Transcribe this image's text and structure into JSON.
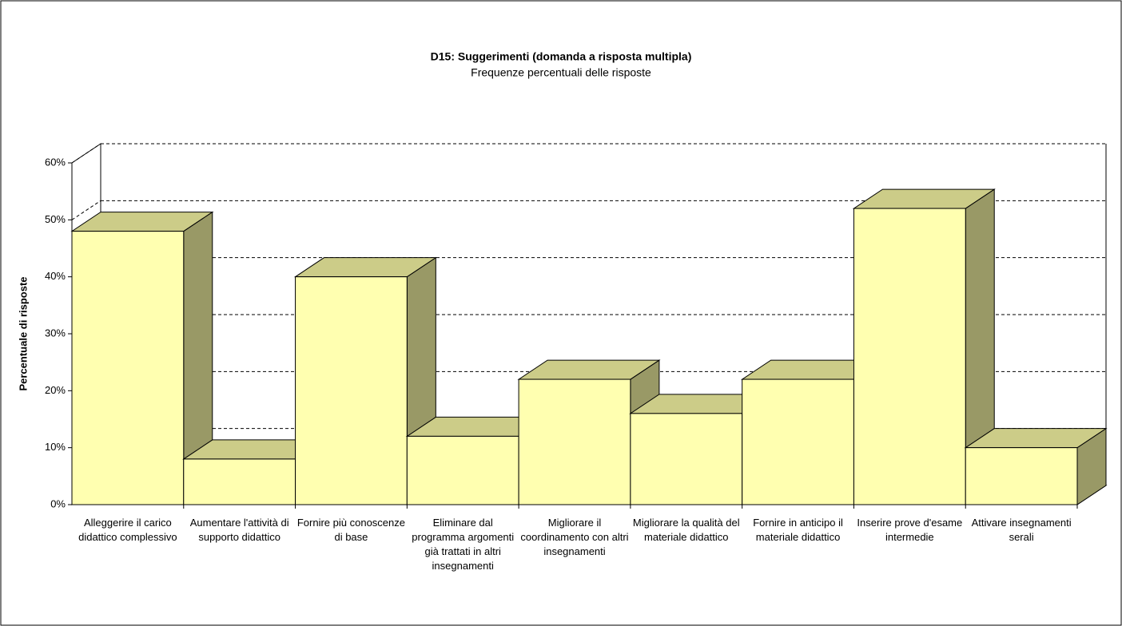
{
  "chart_data": {
    "type": "bar3d",
    "title": "D15: Suggerimenti (domanda a risposta multipla)",
    "subtitle": "Frequenze percentuali delle risposte",
    "y_label": "Percentuale di risposte",
    "categories": [
      "Alleggerire il carico didattico complessivo",
      "Aumentare l'attività di supporto didattico",
      "Fornire più conoscenze di base",
      "Eliminare dal programma argomenti già trattati in altri insegnamenti",
      "Migliorare il coordinamento con altri insegnamenti",
      "Migliorare la qualità del materiale didattico",
      "Fornire in anticipo il materiale didattico",
      "Inserire prove d'esame intermedie",
      "Attivare insegnamenti serali"
    ],
    "values": [
      48,
      8,
      40,
      12,
      22,
      16,
      22,
      52,
      10
    ],
    "color": "#ffffb0",
    "ylim": [
      0,
      60
    ],
    "yticks": [
      {
        "value": 0,
        "label": "0%"
      },
      {
        "value": 10,
        "label": "10%"
      },
      {
        "value": 20,
        "label": "20%"
      },
      {
        "value": 30,
        "label": "30%"
      },
      {
        "value": 40,
        "label": "40%"
      },
      {
        "value": 50,
        "label": "50%"
      },
      {
        "value": 60,
        "label": "60%"
      }
    ],
    "grid": true
  }
}
